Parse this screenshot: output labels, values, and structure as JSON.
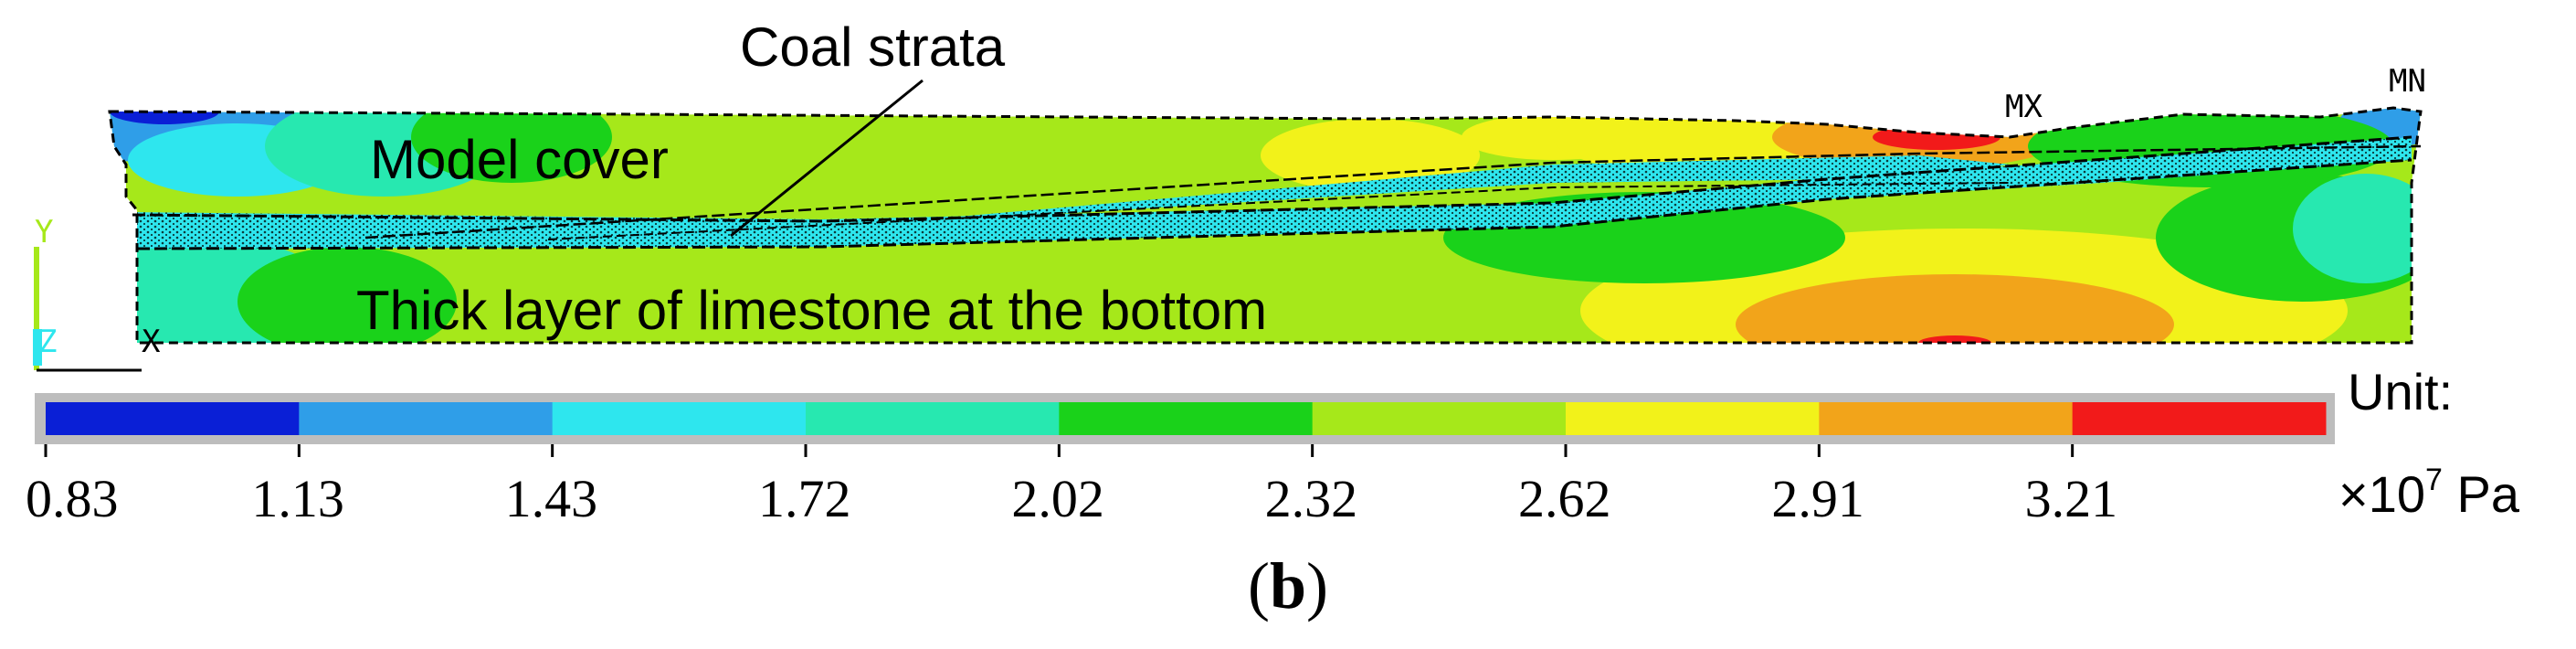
{
  "labels": {
    "coal_strata": "Coal strata",
    "model_cover": "Model cover",
    "limestone": "Thick layer of limestone at the bottom",
    "mx": "MX",
    "mn": "MN",
    "axis_y": "Y",
    "axis_z": "Z",
    "axis_x": "X"
  },
  "legend": {
    "unit_label": "Unit:",
    "unit_value": "×10",
    "unit_exp": "7",
    "unit_suffix": " Pa",
    "ticks": [
      "0.83",
      "1.13",
      "1.43",
      "1.72",
      "2.02",
      "2.32",
      "2.62",
      "2.91",
      "3.21"
    ],
    "colors": [
      "#0a1fd6",
      "#2f9ee8",
      "#2ee6ee",
      "#27e8b0",
      "#1ad21a",
      "#a6e81a",
      "#f2f21a",
      "#f2a41a",
      "#f21a1a"
    ]
  },
  "caption": {
    "open": "(",
    "letter": "b",
    "close": ")"
  }
}
